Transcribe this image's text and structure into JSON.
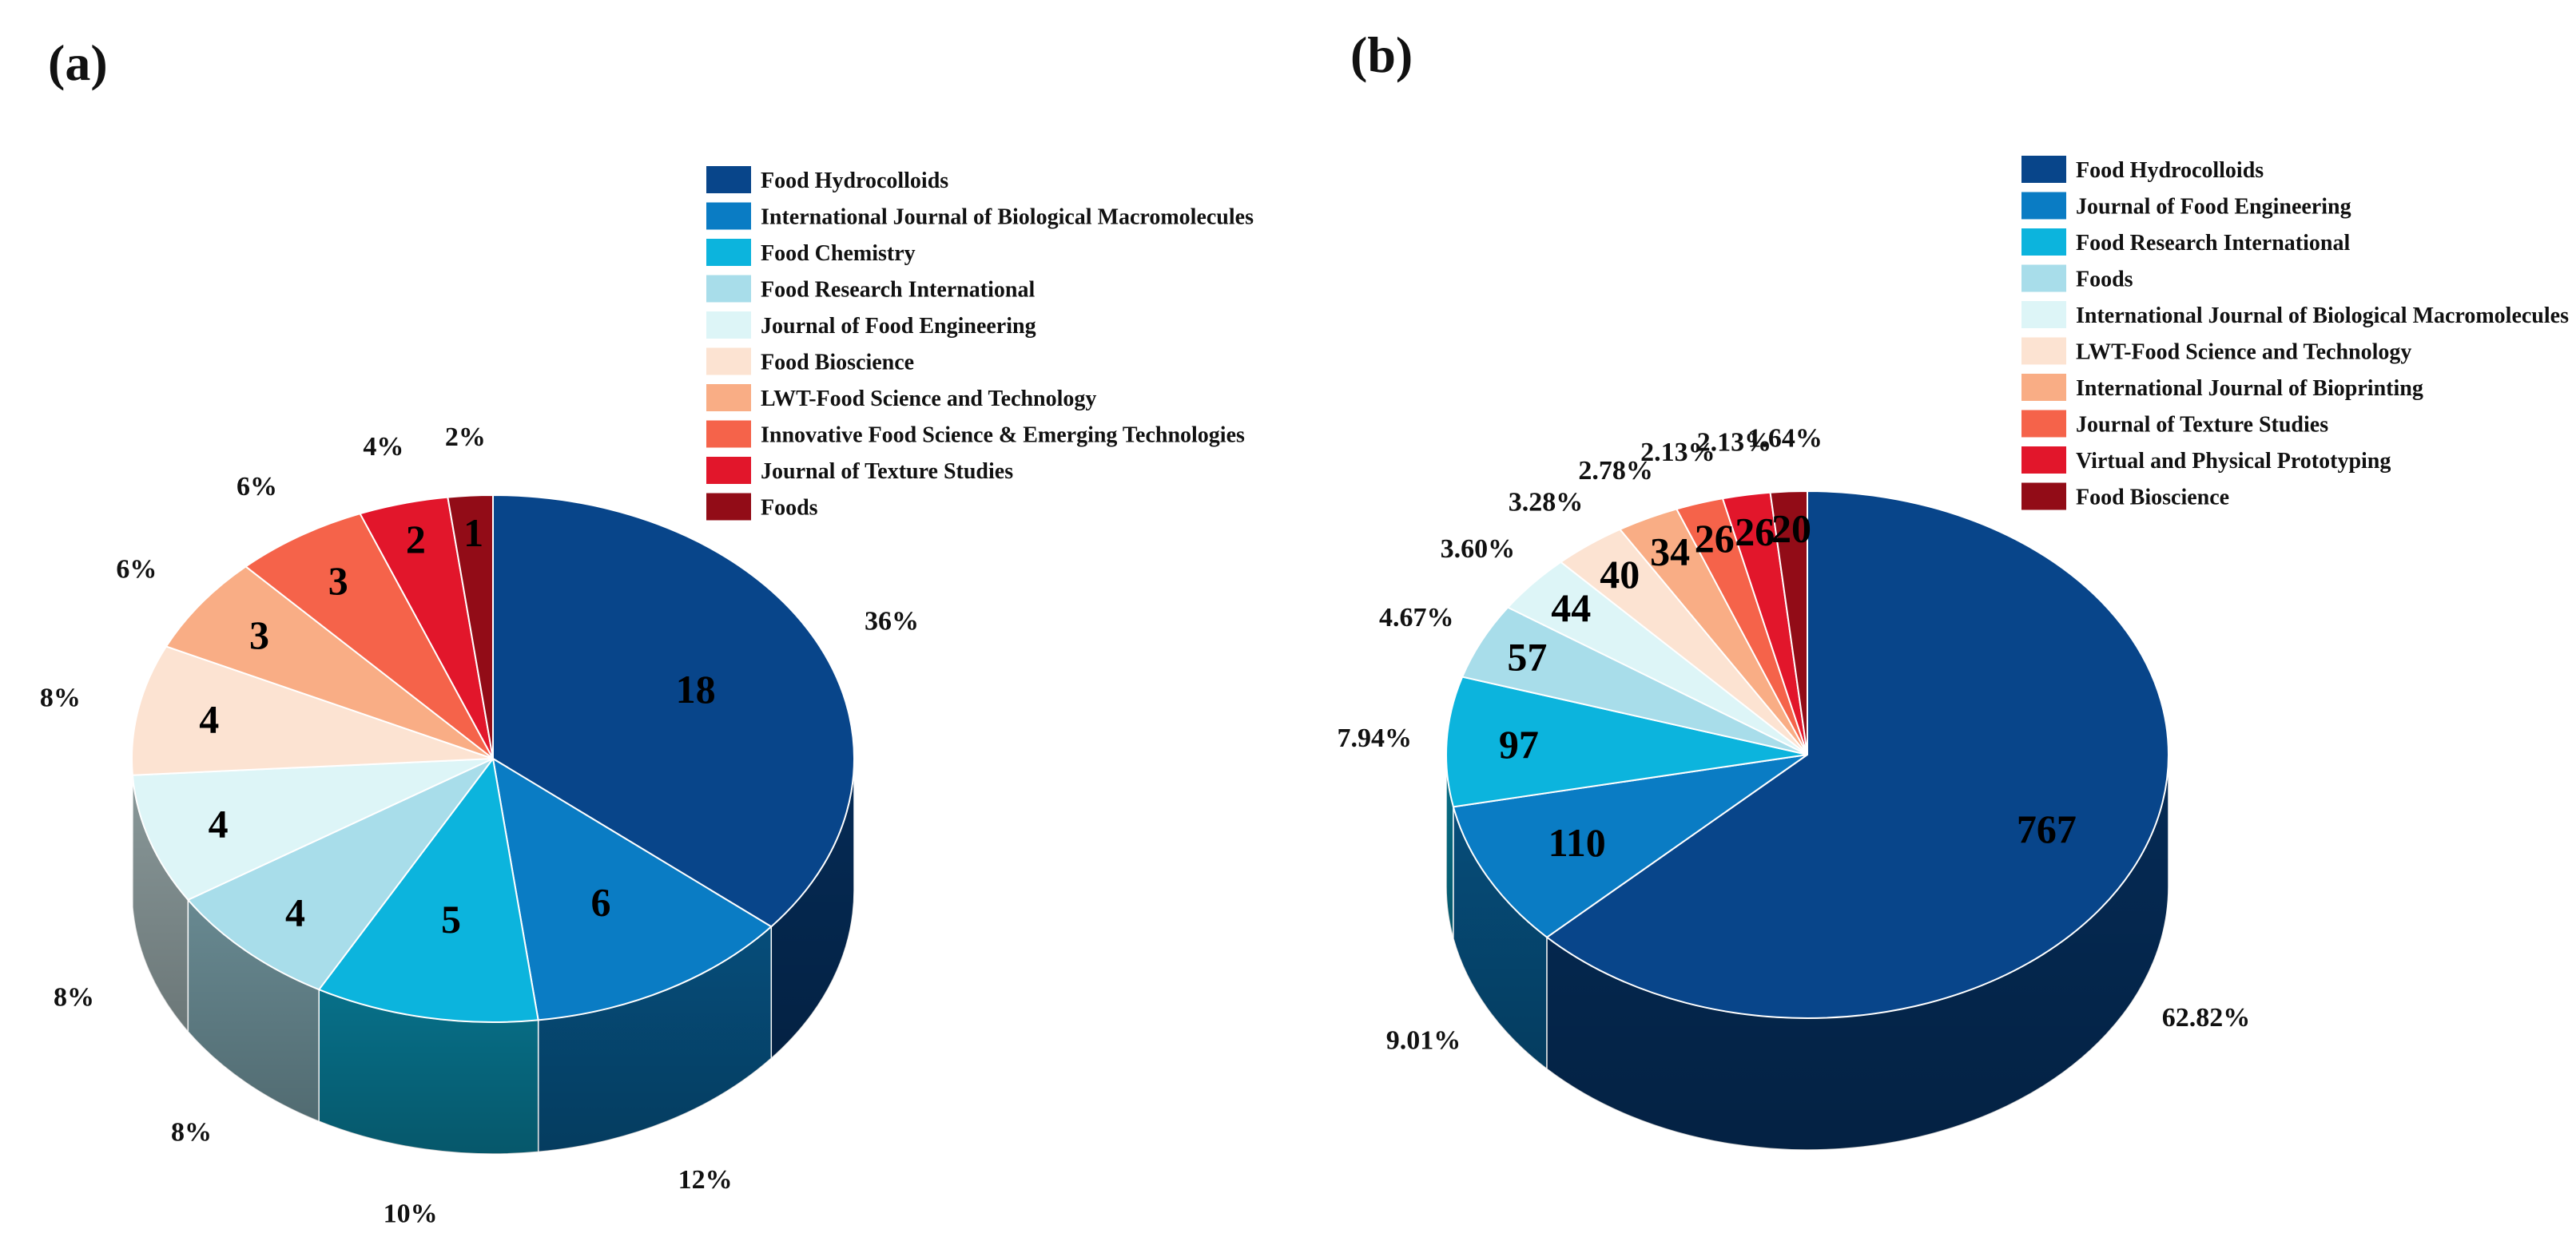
{
  "chart_data": [
    {
      "panel_label": "(a)",
      "type": "pie",
      "style": "3d-pie",
      "legend_position": "top-right",
      "categories": [
        "Food Hydrocolloids",
        "International Journal of Biological Macromolecules",
        "Food Chemistry",
        "Food Research International",
        "Journal of Food Engineering",
        "Food Bioscience",
        "LWT-Food Science and Technology",
        "Innovative Food Science & Emerging Technologies",
        "Journal of Texture Studies",
        "Foods"
      ],
      "values": [
        18,
        6,
        5,
        4,
        4,
        4,
        3,
        3,
        2,
        1
      ],
      "value_labels": [
        "18",
        "6",
        "5",
        "4",
        "4",
        "4",
        "3",
        "3",
        "2",
        "1"
      ],
      "percent_labels": [
        "36%",
        "12%",
        "10%",
        "8%",
        "8%",
        "8%",
        "6%",
        "6%",
        "4%",
        "2%"
      ],
      "colors": [
        "#08458a",
        "#0a7cc4",
        "#0cb4dd",
        "#a8ddea",
        "#ddf5f7",
        "#fce3d2",
        "#f9ad85",
        "#f5634a",
        "#e2162b",
        "#920c17"
      ]
    },
    {
      "panel_label": "(b)",
      "type": "pie",
      "style": "3d-pie",
      "legend_position": "top-right",
      "categories": [
        "Food Hydrocolloids",
        "Journal of Food Engineering",
        "Food Research International",
        "Foods",
        "International Journal of Biological Macromolecules",
        "LWT-Food Science and Technology",
        "International Journal of Bioprinting",
        "Journal of Texture Studies",
        "Virtual and Physical Prototyping",
        "Food Bioscience"
      ],
      "values": [
        767,
        110,
        97,
        57,
        44,
        40,
        34,
        26,
        26,
        20
      ],
      "value_labels": [
        "767",
        "110",
        "97",
        "57",
        "44",
        "40",
        "34",
        "26",
        "26",
        "20"
      ],
      "percent_labels": [
        "62.82%",
        "9.01%",
        "7.94%",
        "4.67%",
        "3.60%",
        "3.28%",
        "2.78%",
        "2.13%",
        "2.13%",
        "1.64%"
      ],
      "colors": [
        "#08458a",
        "#0a7cc4",
        "#0cb4dd",
        "#a8ddea",
        "#ddf5f7",
        "#fce3d2",
        "#f9ad85",
        "#f5634a",
        "#e2162b",
        "#920c17"
      ]
    }
  ]
}
